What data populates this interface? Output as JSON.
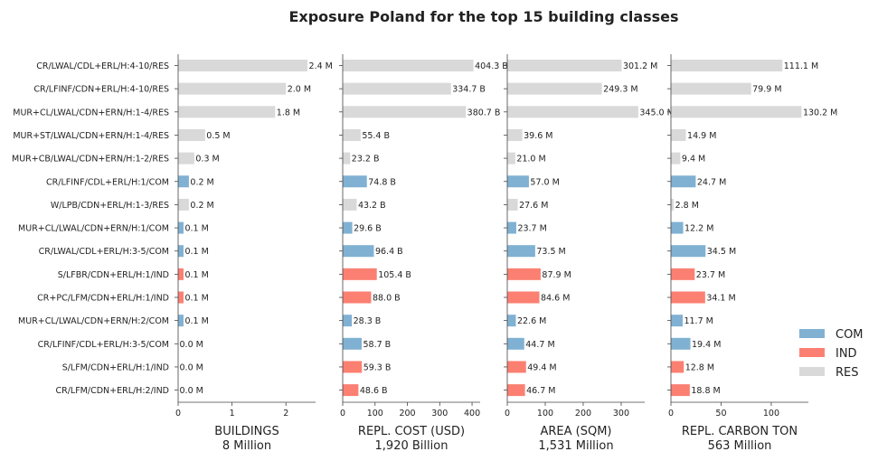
{
  "chart_data": {
    "type": "bar",
    "orientation": "horizontal",
    "title": "Exposure Poland for the top 15 building classes",
    "categories": [
      "CR/LWAL/CDL+ERL/H:4-10/RES",
      "CR/LFINF/CDN+ERL/H:4-10/RES",
      "MUR+CL/LWAL/CDN+ERN/H:1-4/RES",
      "MUR+ST/LWAL/CDN+ERN/H:1-4/RES",
      "MUR+CB/LWAL/CDN+ERN/H:1-2/RES",
      "CR/LFINF/CDL+ERL/H:1/COM",
      "W/LPB/CDN+ERL/H:1-3/RES",
      "MUR+CL/LWAL/CDN+ERN/H:1/COM",
      "CR/LWAL/CDL+ERL/H:3-5/COM",
      "S/LFBR/CDN+ERL/H:1/IND",
      "CR+PC/LFM/CDN+ERL/H:1/IND",
      "MUR+CL/LWAL/CDN+ERN/H:2/COM",
      "CR/LFINF/CDL+ERL/H:3-5/COM",
      "S/LFM/CDN+ERL/H:1/IND",
      "CR/LFM/CDN+ERL/H:2/IND"
    ],
    "occupancy": [
      "RES",
      "RES",
      "RES",
      "RES",
      "RES",
      "COM",
      "RES",
      "COM",
      "COM",
      "IND",
      "IND",
      "COM",
      "COM",
      "IND",
      "IND"
    ],
    "colors": {
      "COM": "#80b1d3",
      "IND": "#fb8072",
      "RES": "#d9d9d9"
    },
    "legend": {
      "position": "lower-right",
      "entries": [
        "COM",
        "IND",
        "RES"
      ]
    },
    "grid": false,
    "panels": [
      {
        "name": "BUILDINGS",
        "total": "8 Million",
        "values": [
          2.4,
          2.0,
          1.8,
          0.5,
          0.3,
          0.2,
          0.2,
          0.1,
          0.1,
          0.1,
          0.1,
          0.1,
          0.0,
          0.0,
          0.0
        ],
        "labels": [
          "2.4 M",
          "2.0 M",
          "1.8 M",
          "0.5 M",
          "0.3 M",
          "0.2 M",
          "0.2 M",
          "0.1 M",
          "0.1 M",
          "0.1 M",
          "0.1 M",
          "0.1 M",
          "0.0 M",
          "0.0 M",
          "0.0 M"
        ],
        "xlim": [
          0,
          2.55
        ],
        "ticks": [
          0,
          1,
          2
        ]
      },
      {
        "name": "REPL. COST (USD)",
        "total": "1,920 Billion",
        "values": [
          404.3,
          334.7,
          380.7,
          55.4,
          23.2,
          74.8,
          43.2,
          29.6,
          96.4,
          105.4,
          88.0,
          28.3,
          58.7,
          59.3,
          48.6
        ],
        "labels": [
          "404.3 B",
          "334.7 B",
          "380.7 B",
          "55.4 B",
          "23.2 B",
          "74.8 B",
          "43.2 B",
          "29.6 B",
          "96.4 B",
          "105.4 B",
          "88.0 B",
          "28.3 B",
          "58.7 B",
          "59.3 B",
          "48.6 B"
        ],
        "xlim": [
          0,
          425
        ],
        "ticks": [
          0,
          100,
          200,
          300,
          400
        ]
      },
      {
        "name": "AREA (SQM)",
        "total": "1,531 Million",
        "values": [
          301.2,
          249.3,
          345.0,
          39.6,
          21.0,
          57.0,
          27.6,
          23.7,
          73.5,
          87.9,
          84.6,
          22.6,
          44.7,
          49.4,
          46.7
        ],
        "labels": [
          "301.2 M",
          "249.3 M",
          "345.0 M",
          "39.6 M",
          "21.0 M",
          "57.0 M",
          "27.6 M",
          "23.7 M",
          "73.5 M",
          "87.9 M",
          "84.6 M",
          "22.6 M",
          "44.7 M",
          "49.4 M",
          "46.7 M"
        ],
        "xlim": [
          0,
          362
        ],
        "ticks": [
          0,
          100,
          200,
          300
        ]
      },
      {
        "name": "REPL. CARBON TON",
        "total": "563 Million",
        "values": [
          111.1,
          79.9,
          130.2,
          14.9,
          9.4,
          24.7,
          2.8,
          12.2,
          34.5,
          23.7,
          34.1,
          11.7,
          19.4,
          12.8,
          18.8
        ],
        "labels": [
          "111.1 M",
          "79.9 M",
          "130.2 M",
          "14.9 M",
          "9.4 M",
          "24.7 M",
          "2.8 M",
          "12.2 M",
          "34.5 M",
          "23.7 M",
          "34.1 M",
          "11.7 M",
          "19.4 M",
          "12.8 M",
          "18.8 M"
        ],
        "xlim": [
          0,
          137
        ],
        "ticks": [
          0,
          50,
          100
        ]
      }
    ]
  }
}
